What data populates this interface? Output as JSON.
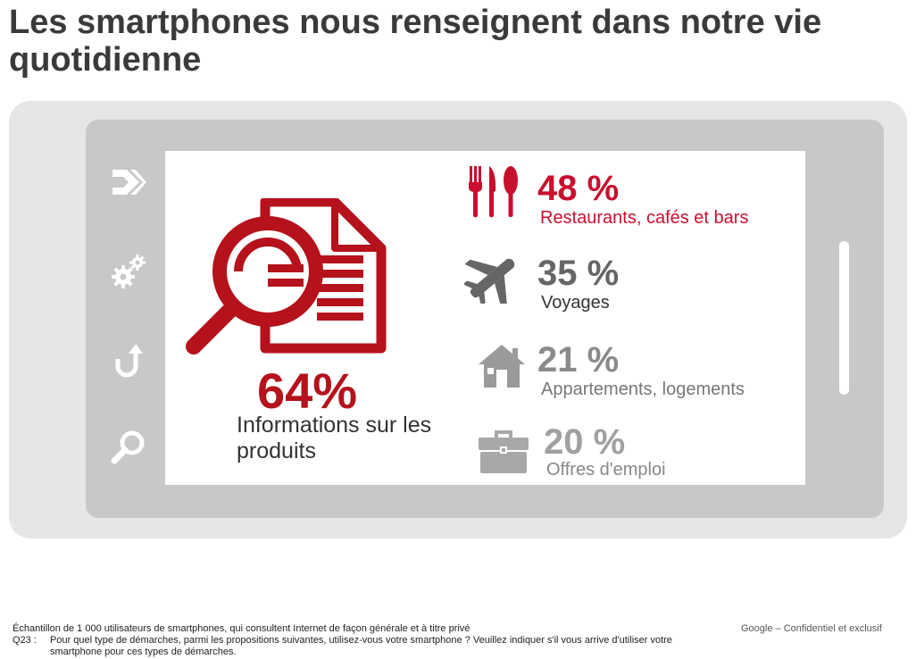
{
  "title": "Les smartphones nous renseignent dans notre vie quotidienne",
  "colors": {
    "red": "#b5121b",
    "red_text": "#c8102e",
    "dark_gray": "#666666",
    "mid_gray": "#8a8a8a",
    "light_gray": "#a8a8a8",
    "lighter_gray": "#b0b0b0",
    "phone_frame": "#e6e6e6",
    "phone_bezel": "#c8c8c8"
  },
  "phone": {
    "side_icons": [
      "arrow-right-icon",
      "gears-icon",
      "back-arrow-icon",
      "search-icon"
    ]
  },
  "highlight": {
    "icon": "magnifier-document-icon",
    "percent": "64%",
    "label": "Informations sur les produits"
  },
  "stats": [
    {
      "icon": "cutlery-icon",
      "percent": "48 %",
      "label": "Restaurants, cafés et bars",
      "color": "#c8102e"
    },
    {
      "icon": "airplane-icon",
      "percent": "35 %",
      "label": "Voyages",
      "color": "#666666"
    },
    {
      "icon": "house-icon",
      "percent": "21 %",
      "label": "Appartements, logements",
      "color": "#8a8a8a"
    },
    {
      "icon": "briefcase-icon",
      "percent": "20 %",
      "label": "Offres d'emploi",
      "color": "#a0a0a0"
    }
  ],
  "footer": {
    "sample": "Échantillon de 1 000 utilisateurs de smartphones, qui consultent Internet de façon générale et à titre privé",
    "question_label": "Q23 :",
    "question": "Pour quel type de démarches, parmi les propositions suivantes, utilisez-vous votre smartphone ? Veuillez indiquer s'il vous arrive d'utiliser votre smartphone pour ces types de démarches.",
    "brand": "Google",
    "confidential": "– Confidentiel et exclusif"
  }
}
